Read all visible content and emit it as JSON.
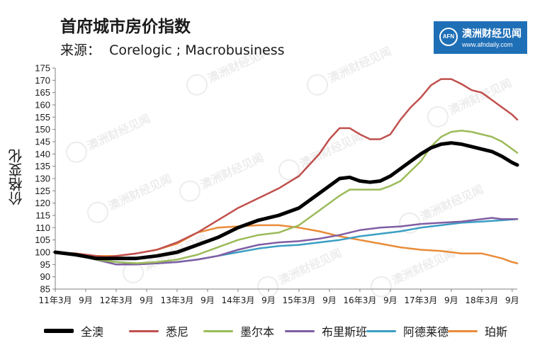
{
  "header": {
    "title": "首府城市房价指数",
    "source": "来源：  Corelogic ; Macrobusiness"
  },
  "logo": {
    "badge": "AFN",
    "name": "澳洲财经见闻",
    "url": "www.afndaily.com"
  },
  "chart_data": {
    "type": "line",
    "title": "首府城市房价指数",
    "ylabel": "价格变化",
    "ylim": [
      85,
      175
    ],
    "yticks": [
      85,
      90,
      95,
      100,
      105,
      110,
      115,
      120,
      125,
      130,
      135,
      140,
      145,
      150,
      155,
      160,
      165,
      170,
      175
    ],
    "xlim": [
      0,
      91
    ],
    "x_ticks": [
      {
        "pos": 0,
        "label": "11年3月"
      },
      {
        "pos": 6,
        "label": "9月"
      },
      {
        "pos": 12,
        "label": "12年3月"
      },
      {
        "pos": 18,
        "label": "9月"
      },
      {
        "pos": 24,
        "label": "13年3月"
      },
      {
        "pos": 30,
        "label": "9月"
      },
      {
        "pos": 36,
        "label": "14年3月"
      },
      {
        "pos": 42,
        "label": "9月"
      },
      {
        "pos": 48,
        "label": "15年3月"
      },
      {
        "pos": 54,
        "label": "9月"
      },
      {
        "pos": 60,
        "label": "16年3月"
      },
      {
        "pos": 66,
        "label": "9月"
      },
      {
        "pos": 72,
        "label": "17年3月"
      },
      {
        "pos": 78,
        "label": "9月"
      },
      {
        "pos": 84,
        "label": "18年3月"
      },
      {
        "pos": 90,
        "label": "9月"
      }
    ],
    "grid": false,
    "legend_position": "bottom",
    "series": [
      {
        "name": "全澳",
        "color": "#000000",
        "width": 5,
        "points": [
          [
            0,
            100
          ],
          [
            4,
            99
          ],
          [
            8,
            97.5
          ],
          [
            12,
            97.5
          ],
          [
            16,
            97.5
          ],
          [
            20,
            98.5
          ],
          [
            24,
            100
          ],
          [
            28,
            103
          ],
          [
            32,
            106
          ],
          [
            36,
            110
          ],
          [
            40,
            113
          ],
          [
            44,
            115
          ],
          [
            48,
            118
          ],
          [
            52,
            124
          ],
          [
            56,
            130
          ],
          [
            58,
            130.5
          ],
          [
            60,
            129
          ],
          [
            62,
            128.5
          ],
          [
            64,
            129
          ],
          [
            66,
            131
          ],
          [
            68,
            134
          ],
          [
            70,
            137
          ],
          [
            72,
            140
          ],
          [
            74,
            142.5
          ],
          [
            76,
            144
          ],
          [
            78,
            144.5
          ],
          [
            80,
            144
          ],
          [
            82,
            143
          ],
          [
            84,
            142
          ],
          [
            86,
            141
          ],
          [
            88,
            139
          ],
          [
            90,
            136.5
          ],
          [
            91,
            135.5
          ]
        ]
      },
      {
        "name": "悉尼",
        "color": "#c0504d",
        "width": 2.5,
        "points": [
          [
            0,
            100
          ],
          [
            4,
            99.5
          ],
          [
            8,
            98.5
          ],
          [
            10,
            98
          ],
          [
            12,
            98.5
          ],
          [
            16,
            99.5
          ],
          [
            20,
            101
          ],
          [
            24,
            104
          ],
          [
            28,
            108
          ],
          [
            32,
            113
          ],
          [
            36,
            118
          ],
          [
            40,
            122
          ],
          [
            44,
            126
          ],
          [
            48,
            131
          ],
          [
            52,
            140
          ],
          [
            54,
            146
          ],
          [
            56,
            150.5
          ],
          [
            58,
            150.5
          ],
          [
            60,
            148
          ],
          [
            62,
            146
          ],
          [
            64,
            146
          ],
          [
            66,
            148
          ],
          [
            68,
            154
          ],
          [
            70,
            159
          ],
          [
            72,
            163
          ],
          [
            74,
            168
          ],
          [
            76,
            170.5
          ],
          [
            78,
            170.5
          ],
          [
            80,
            168.5
          ],
          [
            82,
            166
          ],
          [
            84,
            165
          ],
          [
            86,
            162
          ],
          [
            88,
            159
          ],
          [
            90,
            156
          ],
          [
            91,
            154
          ]
        ]
      },
      {
        "name": "墨尔本",
        "color": "#9bbb59",
        "width": 2.5,
        "points": [
          [
            0,
            100
          ],
          [
            4,
            99
          ],
          [
            8,
            97
          ],
          [
            12,
            96
          ],
          [
            16,
            95.5
          ],
          [
            20,
            96
          ],
          [
            24,
            97
          ],
          [
            28,
            99
          ],
          [
            32,
            102
          ],
          [
            36,
            105
          ],
          [
            40,
            107
          ],
          [
            44,
            108
          ],
          [
            48,
            111
          ],
          [
            52,
            117
          ],
          [
            56,
            123
          ],
          [
            58,
            125.5
          ],
          [
            60,
            125.5
          ],
          [
            64,
            125.5
          ],
          [
            66,
            127
          ],
          [
            68,
            129
          ],
          [
            70,
            133
          ],
          [
            72,
            137
          ],
          [
            74,
            143
          ],
          [
            76,
            147
          ],
          [
            78,
            149
          ],
          [
            80,
            149.5
          ],
          [
            82,
            149
          ],
          [
            84,
            148
          ],
          [
            86,
            147
          ],
          [
            88,
            145
          ],
          [
            90,
            142
          ],
          [
            91,
            140.5
          ]
        ]
      },
      {
        "name": "布里斯班",
        "color": "#7f5ea3",
        "width": 2.5,
        "points": [
          [
            0,
            100
          ],
          [
            4,
            99
          ],
          [
            8,
            97
          ],
          [
            12,
            95
          ],
          [
            16,
            95
          ],
          [
            20,
            95.5
          ],
          [
            24,
            96
          ],
          [
            28,
            97
          ],
          [
            32,
            98.5
          ],
          [
            36,
            101
          ],
          [
            40,
            103
          ],
          [
            44,
            104
          ],
          [
            48,
            104.5
          ],
          [
            52,
            105.5
          ],
          [
            56,
            107
          ],
          [
            60,
            109
          ],
          [
            64,
            110
          ],
          [
            68,
            110.5
          ],
          [
            72,
            111.5
          ],
          [
            76,
            112
          ],
          [
            80,
            112.5
          ],
          [
            84,
            113.5
          ],
          [
            86,
            114
          ],
          [
            88,
            113.5
          ],
          [
            91,
            113.5
          ]
        ]
      },
      {
        "name": "阿德莱德",
        "color": "#3b9ec4",
        "width": 2.5,
        "points": [
          [
            0,
            100
          ],
          [
            4,
            99
          ],
          [
            8,
            97
          ],
          [
            12,
            96
          ],
          [
            16,
            95.5
          ],
          [
            20,
            95.5
          ],
          [
            24,
            96
          ],
          [
            28,
            97
          ],
          [
            32,
            98.5
          ],
          [
            36,
            100
          ],
          [
            40,
            101.5
          ],
          [
            44,
            102.5
          ],
          [
            48,
            103
          ],
          [
            52,
            104
          ],
          [
            56,
            105
          ],
          [
            60,
            106.5
          ],
          [
            64,
            107.5
          ],
          [
            68,
            108.5
          ],
          [
            72,
            110
          ],
          [
            76,
            111
          ],
          [
            80,
            112
          ],
          [
            84,
            112.5
          ],
          [
            88,
            113
          ],
          [
            91,
            113.5
          ]
        ]
      },
      {
        "name": "珀斯",
        "color": "#e98c3a",
        "width": 2.5,
        "points": [
          [
            0,
            100
          ],
          [
            4,
            99.5
          ],
          [
            8,
            98.5
          ],
          [
            12,
            98.5
          ],
          [
            16,
            99.5
          ],
          [
            20,
            101
          ],
          [
            24,
            103.5
          ],
          [
            28,
            108
          ],
          [
            32,
            110
          ],
          [
            36,
            110.5
          ],
          [
            40,
            111
          ],
          [
            44,
            111
          ],
          [
            48,
            110
          ],
          [
            52,
            108.5
          ],
          [
            56,
            106.5
          ],
          [
            60,
            105
          ],
          [
            64,
            103.5
          ],
          [
            68,
            102
          ],
          [
            72,
            101
          ],
          [
            76,
            100.5
          ],
          [
            80,
            99.5
          ],
          [
            84,
            99.5
          ],
          [
            86,
            98.5
          ],
          [
            88,
            97.5
          ],
          [
            90,
            96
          ],
          [
            91,
            95.5
          ]
        ]
      }
    ]
  },
  "watermark": "澳洲财经见闻"
}
